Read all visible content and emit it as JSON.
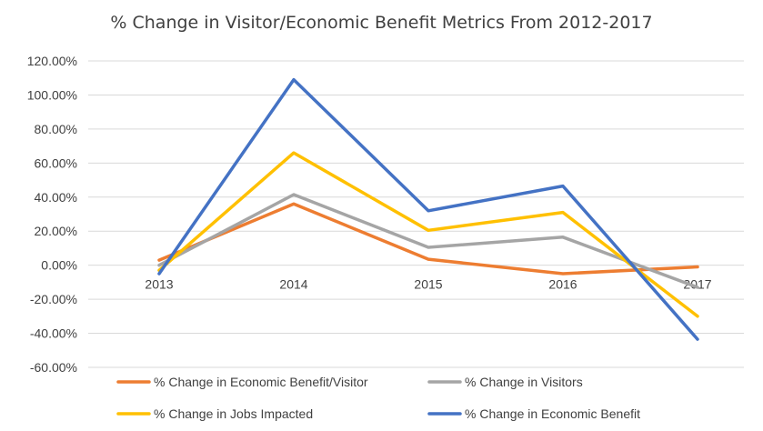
{
  "chart_data": {
    "type": "line",
    "title": "% Change in Visitor/Economic Benefit Metrics From 2012-2017",
    "categories": [
      "2013",
      "2014",
      "2015",
      "2016",
      "2017"
    ],
    "y_ticks": [
      "120.00%",
      "100.00%",
      "80.00%",
      "60.00%",
      "40.00%",
      "20.00%",
      "0.00%",
      "-20.00%",
      "-40.00%",
      "-60.00%"
    ],
    "ylim": [
      -0.6,
      1.2
    ],
    "grid": true,
    "legend_position": "bottom",
    "series": [
      {
        "name": "% Change in Economic Benefit/Visitor",
        "color": "#ED7D31",
        "values": [
          0.03,
          0.36,
          0.035,
          -0.05,
          -0.01
        ]
      },
      {
        "name": "% Change in Visitors",
        "color": "#A5A5A5",
        "values": [
          0.0,
          0.415,
          0.105,
          0.165,
          -0.13
        ]
      },
      {
        "name": "% Change in Jobs Impacted",
        "color": "#FFC000",
        "values": [
          -0.03,
          0.66,
          0.205,
          0.31,
          -0.3
        ]
      },
      {
        "name": "% Change in Economic Benefit",
        "color": "#4472C4",
        "values": [
          -0.05,
          1.09,
          0.32,
          0.465,
          -0.435
        ]
      }
    ]
  }
}
